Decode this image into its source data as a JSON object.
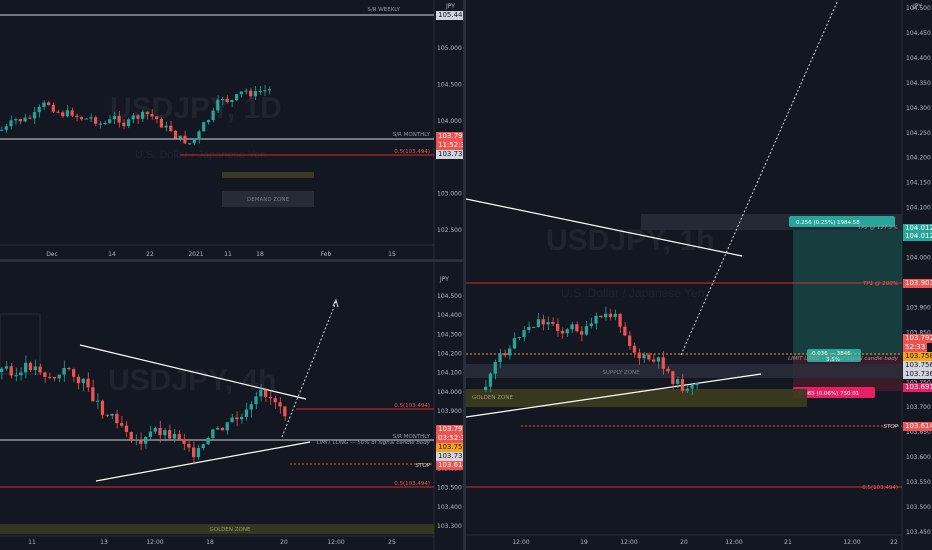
{
  "top_left": {
    "currency": "JPY",
    "watermark": "USDJPY, 1D",
    "subtitle": "U.S. Dollar / Japanese Yen",
    "price_ticks": [
      "105.000",
      "104.500",
      "104.000",
      "103.500",
      "103.000",
      "102.500"
    ],
    "time_ticks": [
      "Dec",
      "14",
      "22",
      "2021",
      "11",
      "18",
      "Feb",
      "15"
    ],
    "lines": {
      "weekly": "S/R WEEKLY",
      "monthly": "S/R MONTHLY",
      "entry": "0.5(103.494)",
      "demand": "DEMAND ZONE"
    },
    "price_labels": {
      "weekly": "105.442",
      "current": "103.792",
      "countdown": "11:52:33",
      "prev": "103.736"
    }
  },
  "bottom_left": {
    "currency": "JPY",
    "watermark": "USDJPY, 4h",
    "price_ticks": [
      "104.500",
      "104.400",
      "104.300",
      "104.200",
      "104.100",
      "104.000",
      "103.900",
      "103.800",
      "103.700",
      "103.600",
      "103.500",
      "103.400",
      "103.300"
    ],
    "time_ticks": [
      "11",
      "13",
      "12:00",
      "18",
      "20",
      "12:00",
      "25"
    ],
    "lines": {
      "fib": "0.5(103.494)",
      "fib2": "0.5(103.494)",
      "monthly": "S/R MONTHLY",
      "limit": "LIMIT LONG — 50% of signal candle body",
      "stop": "STOP",
      "golden": "GOLDEN ZONE"
    },
    "price_labels": {
      "current": "103.792",
      "countdown": "03:52:33",
      "limit": "103.758",
      "prev": "103.736",
      "stop": "103.614"
    }
  },
  "right": {
    "currency": "JPY",
    "watermark": "USDJPY, 1h",
    "subtitle": "U.S. Dollar / Japanese Yen",
    "price_ticks": [
      "104.500",
      "104.450",
      "104.400",
      "104.350",
      "104.300",
      "104.250",
      "104.200",
      "104.150",
      "104.100",
      "104.050",
      "104.000",
      "103.950",
      "103.900",
      "103.850",
      "103.800",
      "103.750",
      "103.700",
      "103.650",
      "103.600",
      "103.550",
      "103.500",
      "103.450"
    ],
    "time_ticks": [
      "12:00",
      "19",
      "12:00",
      "20",
      "12:00",
      "21",
      "12:00",
      "22"
    ],
    "lines": {
      "tp2": "TP2 @ 127.2%",
      "tp1": "TP1 @ 100%",
      "limit": "LIMIT LONG - 50% of signal candle body",
      "supply": "SUPPLY ZONE",
      "golden": "GOLDEN ZONE",
      "stop": "STOP",
      "fib": "0.5(103.494)"
    },
    "position": {
      "target": "0.256 (0.25%) 1984.58",
      "entry": "0.036 — 3846",
      "entry_sub": "3.5%",
      "stop": "0.065 (0.06%) 750.01"
    },
    "price_labels": {
      "tp2a": "104.012",
      "tp2b": "104.012",
      "tp1": "103.903",
      "current": "103.792",
      "countdown": "52:33",
      "limit": "103.758",
      "ref": "103.756",
      "prev": "103.736",
      "supply": "103.691",
      "stop": "103.614"
    }
  },
  "colors": {
    "bg": "#131722",
    "up": "#26a69a",
    "down": "#ef5350",
    "red_line": "#d32f2f",
    "stop_label": "#ef5350",
    "limit_label": "#f7a21b",
    "supply_label": "#e91e63",
    "target_fill": "#1b5e55",
    "stop_fill": "#5c1f2e"
  }
}
